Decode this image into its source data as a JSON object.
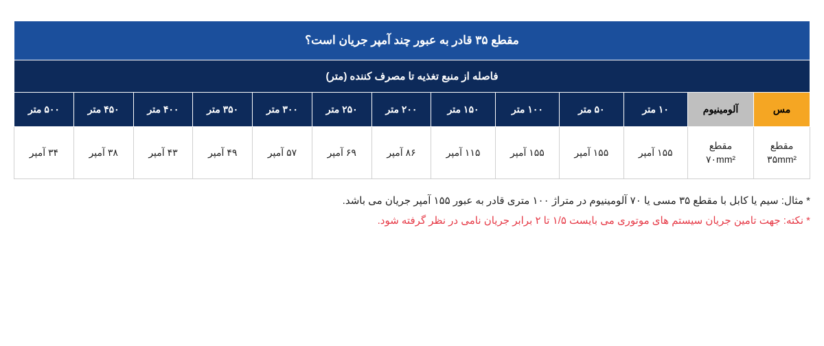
{
  "table": {
    "title": "مقطع ۳۵ قادر به عبور چند آمپر جریان است؟",
    "subtitle": "فاصله از منبع تغذیه تا مصرف کننده  (متر)",
    "headers": {
      "copper": "مس",
      "aluminum": "آلومینیوم",
      "d10": "۱۰ متر",
      "d50": "۵۰ متر",
      "d100": "۱۰۰ متر",
      "d150": "۱۵۰ متر",
      "d200": "۲۰۰ متر",
      "d250": "۲۵۰ متر",
      "d300": "۳۰۰ متر",
      "d350": "۳۵۰ متر",
      "d400": "۴۰۰ متر",
      "d450": "۴۵۰ متر",
      "d500": "۵۰۰ متر"
    },
    "row": {
      "copper_spec_l1": "مقطع",
      "copper_spec_l2": "۳۵mm²",
      "alum_spec_l1": "مقطع",
      "alum_spec_l2": "۷۰mm²",
      "v10": "۱۵۵ آمپر",
      "v50": "۱۵۵ آمپر",
      "v100": "۱۵۵ آمپر",
      "v150": "۱۱۵ آمپر",
      "v200": "۸۶ آمپر",
      "v250": "۶۹ آمپر",
      "v300": "۵۷ آمپر",
      "v350": "۴۹ آمپر",
      "v400": "۴۳ آمپر",
      "v450": "۳۸ آمپر",
      "v500": "۳۴ آمپر"
    },
    "colors": {
      "title_bg": "#1b4f9c",
      "header_bg": "#0d2a5a",
      "copper_bg": "#f5a623",
      "alum_bg": "#bfbfbf",
      "data_border": "#d0d0d0",
      "text_white": "#ffffff",
      "text_black": "#222222"
    }
  },
  "notes": {
    "example": "* مثال: سیم یا کابل با مقطع ۳۵ مسی یا ۷۰ آلومینیوم در متراژ ۱۰۰ متری قادر به عبور ۱۵۵ آمپر جریان می باشد.",
    "tip": "* نکته: جهت تامین جریان سیستم های موتوری می بایست ۱/۵ تا ۲ برابر جریان نامی در نظر گرفته شود.",
    "tip_color": "#e63946"
  }
}
